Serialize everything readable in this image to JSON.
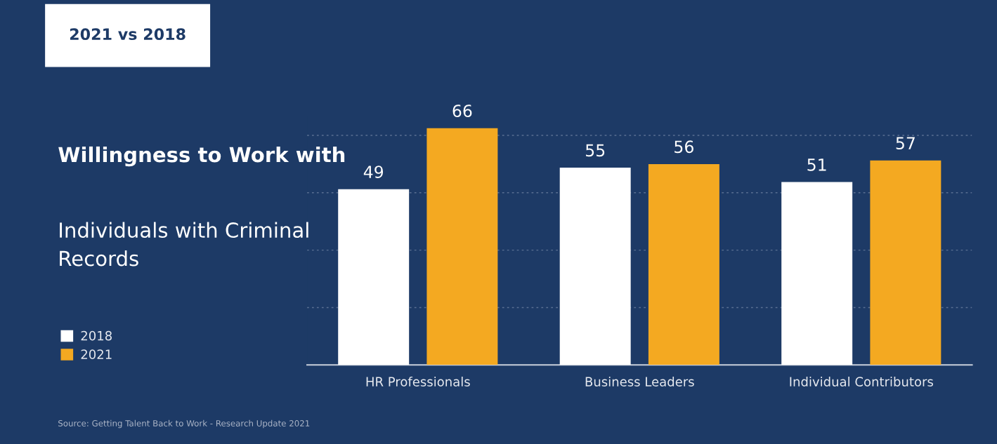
{
  "chart_data": {
    "type": "bar",
    "title": "Willingness to Work with",
    "subtitle": "Individuals with Criminal Records",
    "categories": [
      "HR Professionals",
      "Business Leaders",
      "Individual Contributors"
    ],
    "series": [
      {
        "name": "2018",
        "color": "#ffffff",
        "values": [
          49,
          55,
          51
        ]
      },
      {
        "name": "2021",
        "color": "#f4a921",
        "values": [
          66,
          56,
          57
        ]
      }
    ],
    "ref_lines": [
      {
        "axis": "y",
        "value": 16,
        "color": "#5a6f92",
        "line_style": "dotted"
      },
      {
        "axis": "y",
        "value": 32,
        "color": "#5a6f92",
        "line_style": "dotted"
      },
      {
        "axis": "y",
        "value": 48,
        "color": "#5a6f92",
        "line_style": "dotted"
      },
      {
        "axis": "y",
        "value": 64,
        "color": "#5a6f92",
        "line_style": "dotted"
      }
    ],
    "legend": "left",
    "data_labels": true,
    "annotations": [
      "2021 vs 2018",
      "Source: Getting Talent Back to Work - Research Update 2021"
    ]
  }
}
